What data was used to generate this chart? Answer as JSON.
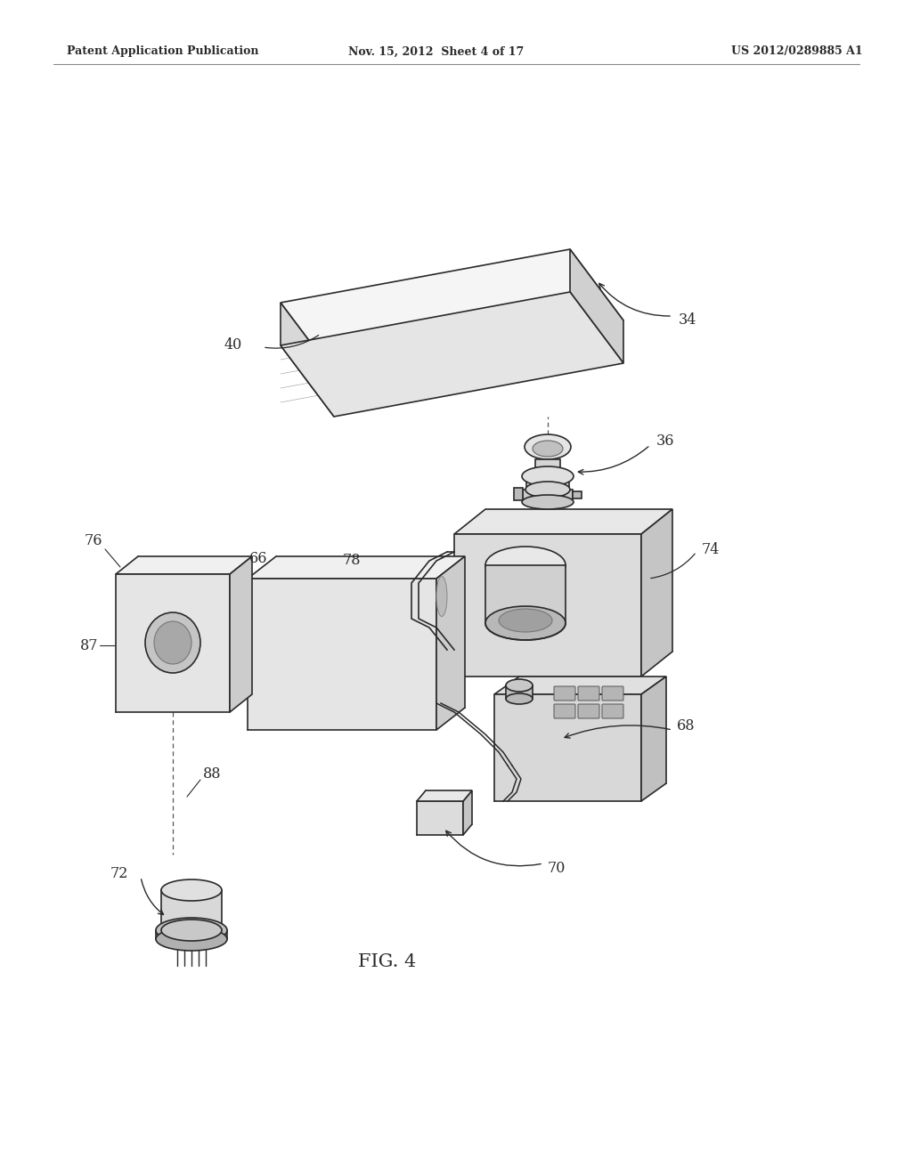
{
  "bg_color": "#ffffff",
  "line_color": "#2a2a2a",
  "header_left": "Patent Application Publication",
  "header_mid": "Nov. 15, 2012  Sheet 4 of 17",
  "header_right": "US 2012/0289885 A1",
  "fig_title": "FIG. 4",
  "label_fontsize": 11.5
}
